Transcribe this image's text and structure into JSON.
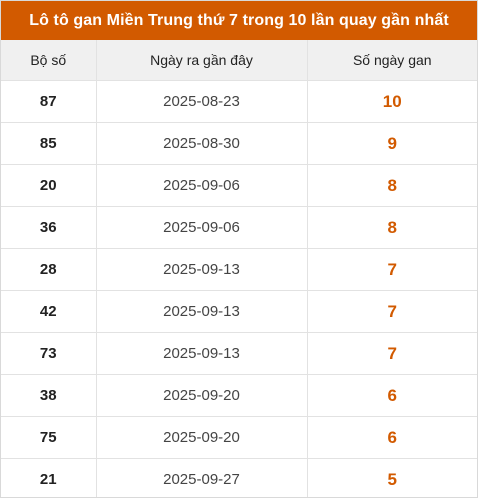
{
  "title": "Lô tô gan Miền Trung thứ 7 trong 10 lần quay gần nhất",
  "colors": {
    "accent": "#d25a00",
    "header_bg": "#f0f0f0",
    "border": "#e2e2e2"
  },
  "table": {
    "headers": [
      "Bộ số",
      "Ngày ra gần đây",
      "Số ngày gan"
    ],
    "rows": [
      {
        "number": "87",
        "date": "2025-08-23",
        "days": "10"
      },
      {
        "number": "85",
        "date": "2025-08-30",
        "days": "9"
      },
      {
        "number": "20",
        "date": "2025-09-06",
        "days": "8"
      },
      {
        "number": "36",
        "date": "2025-09-06",
        "days": "8"
      },
      {
        "number": "28",
        "date": "2025-09-13",
        "days": "7"
      },
      {
        "number": "42",
        "date": "2025-09-13",
        "days": "7"
      },
      {
        "number": "73",
        "date": "2025-09-13",
        "days": "7"
      },
      {
        "number": "38",
        "date": "2025-09-20",
        "days": "6"
      },
      {
        "number": "75",
        "date": "2025-09-20",
        "days": "6"
      },
      {
        "number": "21",
        "date": "2025-09-27",
        "days": "5"
      }
    ]
  }
}
